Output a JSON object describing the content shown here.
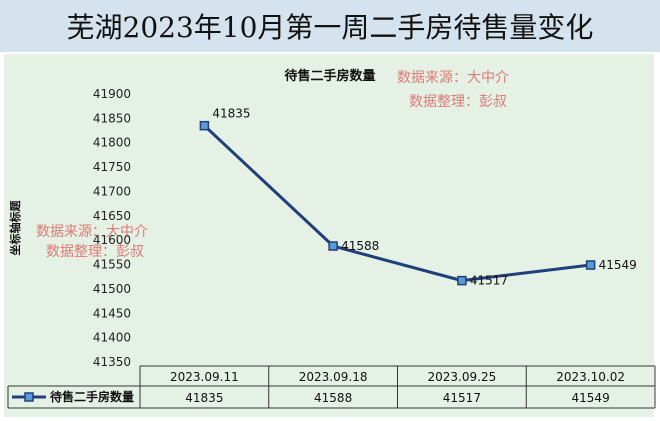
{
  "page_title": "芜湖2023年10月第一周二手房待售量变化",
  "watermarks": [
    {
      "line1": "数据来源：大中介",
      "line2": "数据整理：彭叔"
    },
    {
      "line1": "数据来源：大中介",
      "line2": "数据整理：彭叔"
    }
  ],
  "chart_data": {
    "type": "line",
    "title": "待售二手房数量",
    "xlabel": "",
    "ylabel": "坐标轴标题",
    "categories": [
      "2023.09.11",
      "2023.09.18",
      "2023.09.25",
      "2023.10.02"
    ],
    "series": [
      {
        "name": "待售二手房数量",
        "values": [
          41835,
          41588,
          41517,
          41549
        ],
        "color": "#1f3f7a"
      }
    ],
    "ylim": [
      41350,
      41900
    ],
    "ytick_step": 50,
    "data_table": true,
    "grid": false,
    "legend": "in data table"
  }
}
